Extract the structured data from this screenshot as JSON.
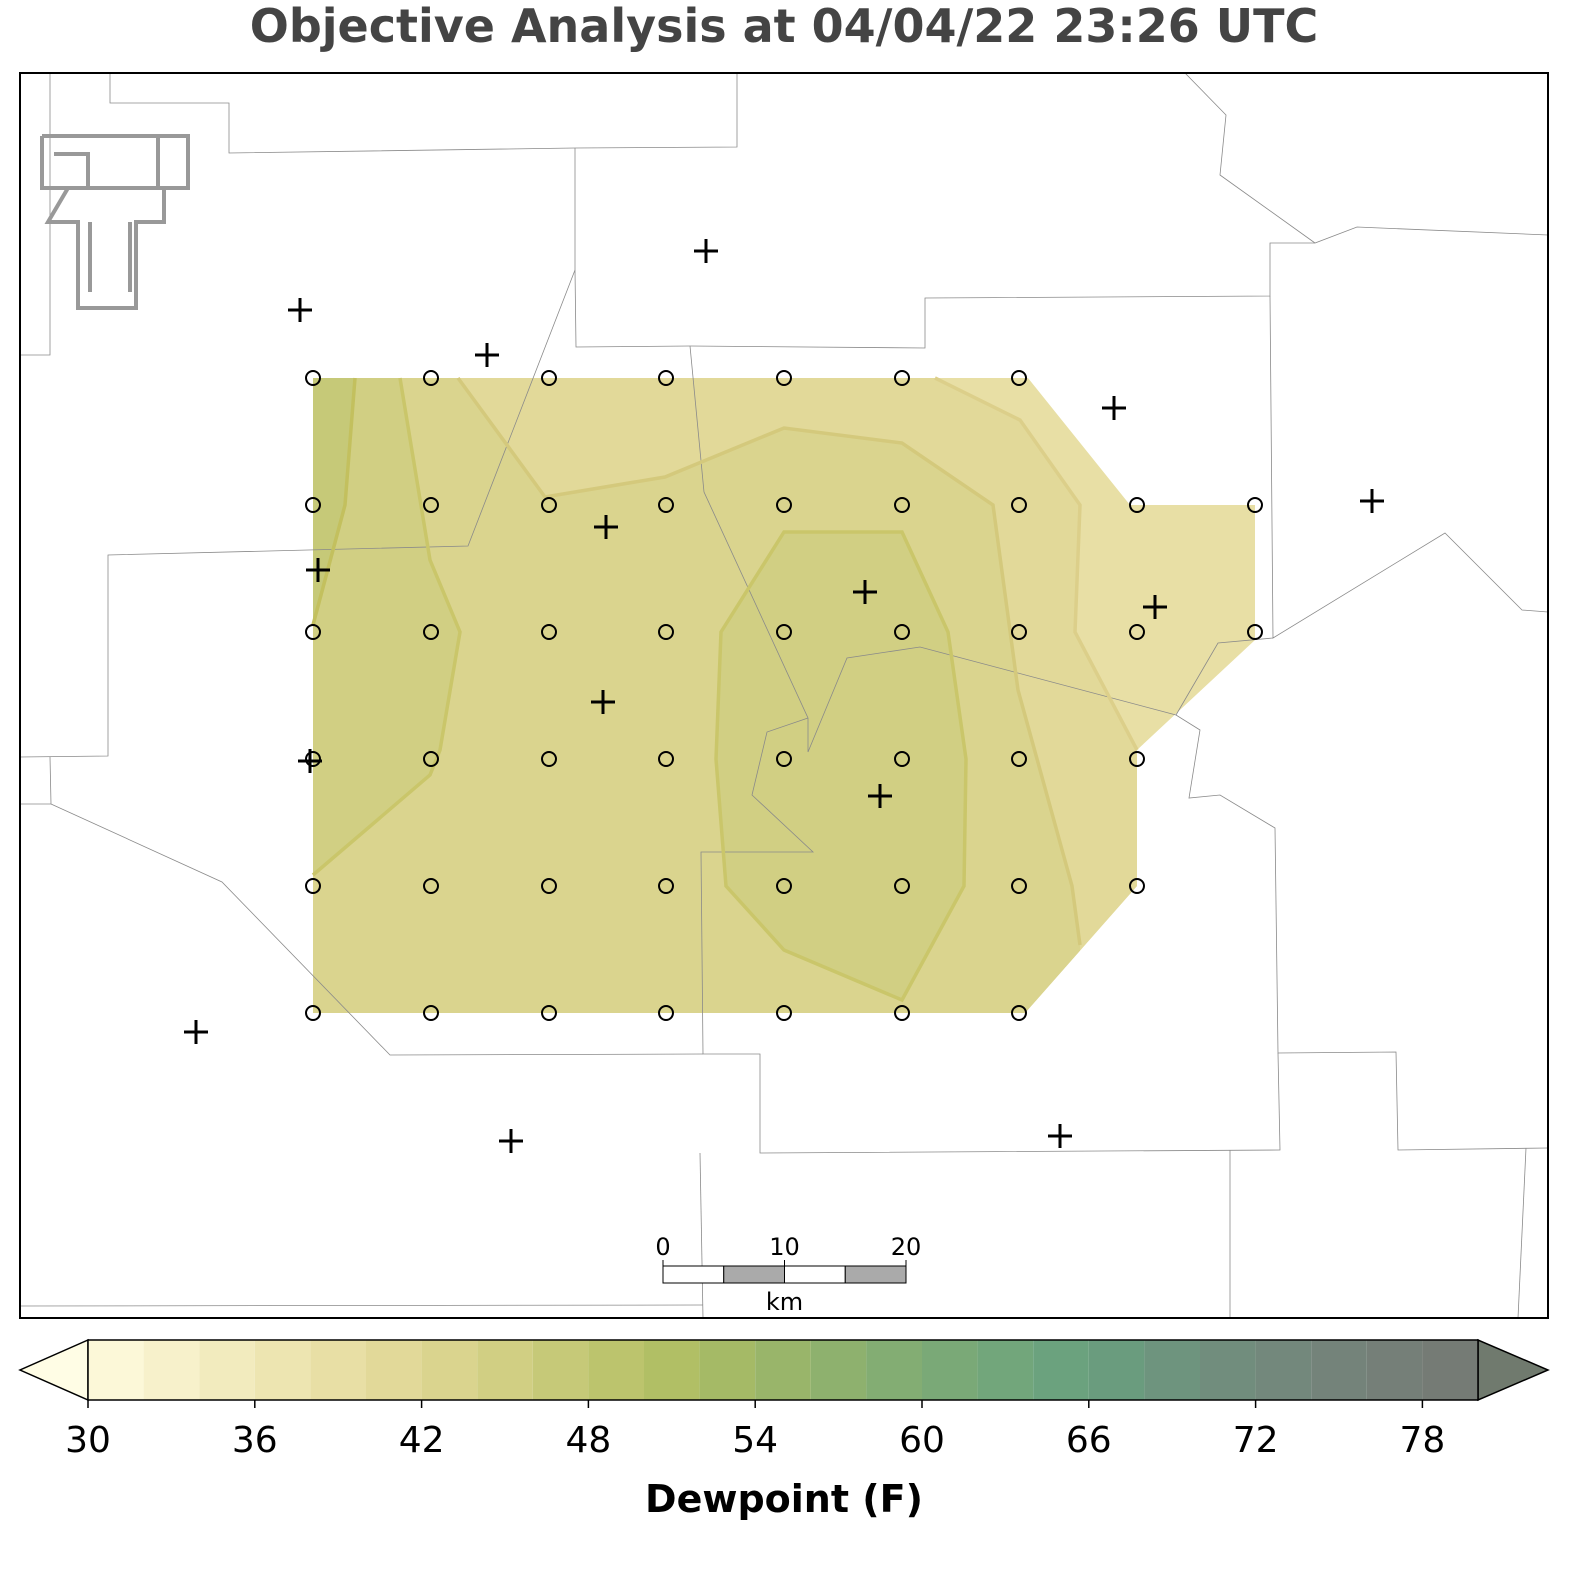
{
  "title": "Objective Analysis at 04/04/22 23:26 UTC",
  "colorbar": {
    "label": "Dewpoint (F)",
    "levels": [
      30,
      32,
      34,
      36,
      38,
      40,
      42,
      44,
      46,
      48,
      50,
      52,
      54,
      56,
      58,
      60,
      62,
      64,
      66,
      68,
      70,
      72,
      74,
      76,
      78,
      80
    ],
    "ticks": [
      30,
      36,
      42,
      48,
      54,
      60,
      66,
      72,
      78
    ],
    "colors": [
      "#fcf8d8",
      "#f7f1cb",
      "#f2ebbe",
      "#ede5b1",
      "#e8dfa5",
      "#e2d999",
      "#dad48e",
      "#d1cf83",
      "#c6c978",
      "#bcc46d",
      "#b1bf65",
      "#a5ba66",
      "#99b56a",
      "#8eb16e",
      "#83ad73",
      "#7aa977",
      "#72a67b",
      "#6ba27e",
      "#6a9c7e",
      "#6e947e",
      "#718d7d",
      "#73887c",
      "#74837a",
      "#757f78",
      "#757b75"
    ],
    "under_color": "#fffde5",
    "over_color": "#707a6e"
  },
  "scalebar": {
    "ticks": [
      0,
      10,
      20
    ],
    "unit": "km"
  }
}
